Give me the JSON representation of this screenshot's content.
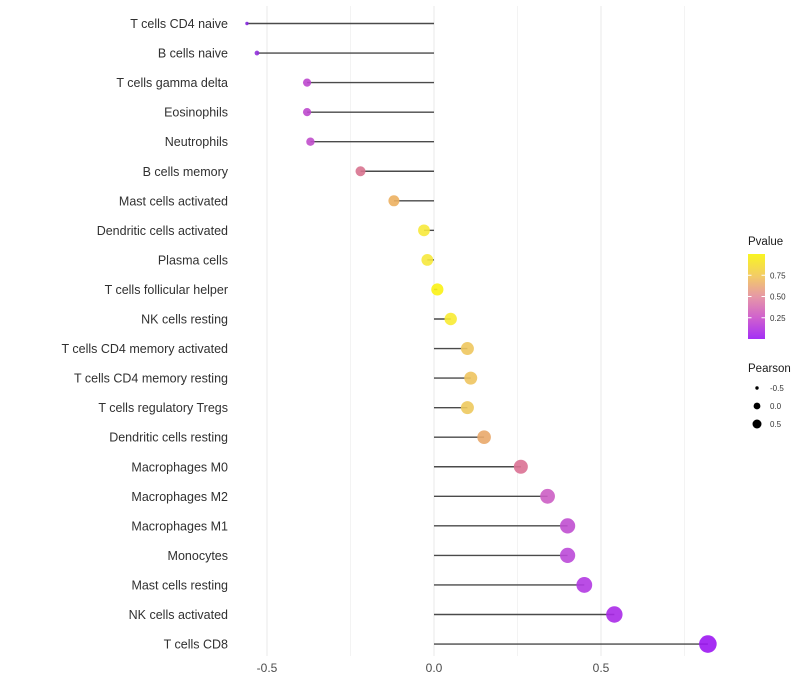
{
  "chart_data": {
    "type": "scatter",
    "subtype": "lollipop",
    "title": "",
    "xlabel": "",
    "ylabel": "",
    "x_axis": {
      "ticks": [
        {
          "label": "-0.5",
          "value": -0.5
        },
        {
          "label": "0.0",
          "value": 0.0
        },
        {
          "label": "0.5",
          "value": 0.5
        }
      ],
      "minor_ticks": [
        -0.25,
        0.25,
        0.75
      ],
      "range": [
        -0.6,
        0.86
      ],
      "grid": "on"
    },
    "rows": [
      {
        "label": "T cells CD4 naive",
        "pearson": -0.56,
        "color": "#8527dd",
        "r": 1.7
      },
      {
        "label": "B cells naive",
        "pearson": -0.53,
        "color": "#9130da",
        "r": 2.4
      },
      {
        "label": "T cells gamma delta",
        "pearson": -0.38,
        "color": "#bc47ce",
        "r": 4.1
      },
      {
        "label": "Eosinophils",
        "pearson": -0.38,
        "color": "#bd48cd",
        "r": 4.1
      },
      {
        "label": "Neutrophils",
        "pearson": -0.37,
        "color": "#c04ecb",
        "r": 4.2
      },
      {
        "label": "B cells memory",
        "pearson": -0.22,
        "color": "#d8738f",
        "r": 5.0
      },
      {
        "label": "Mast cells activated",
        "pearson": -0.12,
        "color": "#ecb060",
        "r": 5.5
      },
      {
        "label": "Dendritic cells activated",
        "pearson": -0.03,
        "color": "#f7e93b",
        "r": 5.9
      },
      {
        "label": "Plasma cells",
        "pearson": -0.02,
        "color": "#f6e83c",
        "r": 5.9
      },
      {
        "label": "T cells follicular helper",
        "pearson": 0.01,
        "color": "#fbf214",
        "r": 6.1
      },
      {
        "label": "NK cells resting",
        "pearson": 0.05,
        "color": "#f8eb33",
        "r": 6.2
      },
      {
        "label": "T cells CD4 memory activated",
        "pearson": 0.1,
        "color": "#eec75e",
        "r": 6.5
      },
      {
        "label": "T cells CD4 memory resting",
        "pearson": 0.11,
        "color": "#eec45f",
        "r": 6.5
      },
      {
        "label": "T cells regulatory  Tregs",
        "pearson": 0.1,
        "color": "#edc95e",
        "r": 6.5
      },
      {
        "label": "Dendritic cells resting",
        "pearson": 0.15,
        "color": "#e9a96a",
        "r": 6.8
      },
      {
        "label": "Macrophages M0",
        "pearson": 0.26,
        "color": "#da7193",
        "r": 7.0
      },
      {
        "label": "Macrophages M2",
        "pearson": 0.34,
        "color": "#cc5ec4",
        "r": 7.4
      },
      {
        "label": "Macrophages M1",
        "pearson": 0.4,
        "color": "#c04fd0",
        "r": 7.6
      },
      {
        "label": "Monocytes",
        "pearson": 0.4,
        "color": "#bb4ad8",
        "r": 7.6
      },
      {
        "label": "Mast cells resting",
        "pearson": 0.45,
        "color": "#b23ae2",
        "r": 7.9
      },
      {
        "label": "NK cells activated",
        "pearson": 0.54,
        "color": "#aa2ae8",
        "r": 8.2
      },
      {
        "label": "T cells CD8",
        "pearson": 0.82,
        "color": "#9c17f2",
        "r": 8.8
      }
    ],
    "legend": {
      "position": "right",
      "pvalue": {
        "title": "Pvalue",
        "ticks": [
          {
            "label": "0.75",
            "t": 0.75
          },
          {
            "label": "0.50",
            "t": 0.5
          },
          {
            "label": "0.25",
            "t": 0.25
          }
        ],
        "gradient": [
          {
            "t": 0.0,
            "color": "#a42ff5"
          },
          {
            "t": 0.25,
            "color": "#d061ce"
          },
          {
            "t": 0.5,
            "color": "#e698a6"
          },
          {
            "t": 0.75,
            "color": "#f3cd64"
          },
          {
            "t": 1.0,
            "color": "#f9f521"
          }
        ]
      },
      "pearson": {
        "title": "Pearson",
        "items": [
          {
            "label": "-0.5",
            "r": 1.7
          },
          {
            "label": "0.0",
            "r": 3.4
          },
          {
            "label": "0.5",
            "r": 4.5
          }
        ],
        "dot_color": "#000000"
      }
    },
    "colors": {
      "stem": "#4a4a4a",
      "grid_major": "#e9e9e9",
      "grid_minor": "#f3f3f3",
      "background": "#ffffff"
    }
  }
}
